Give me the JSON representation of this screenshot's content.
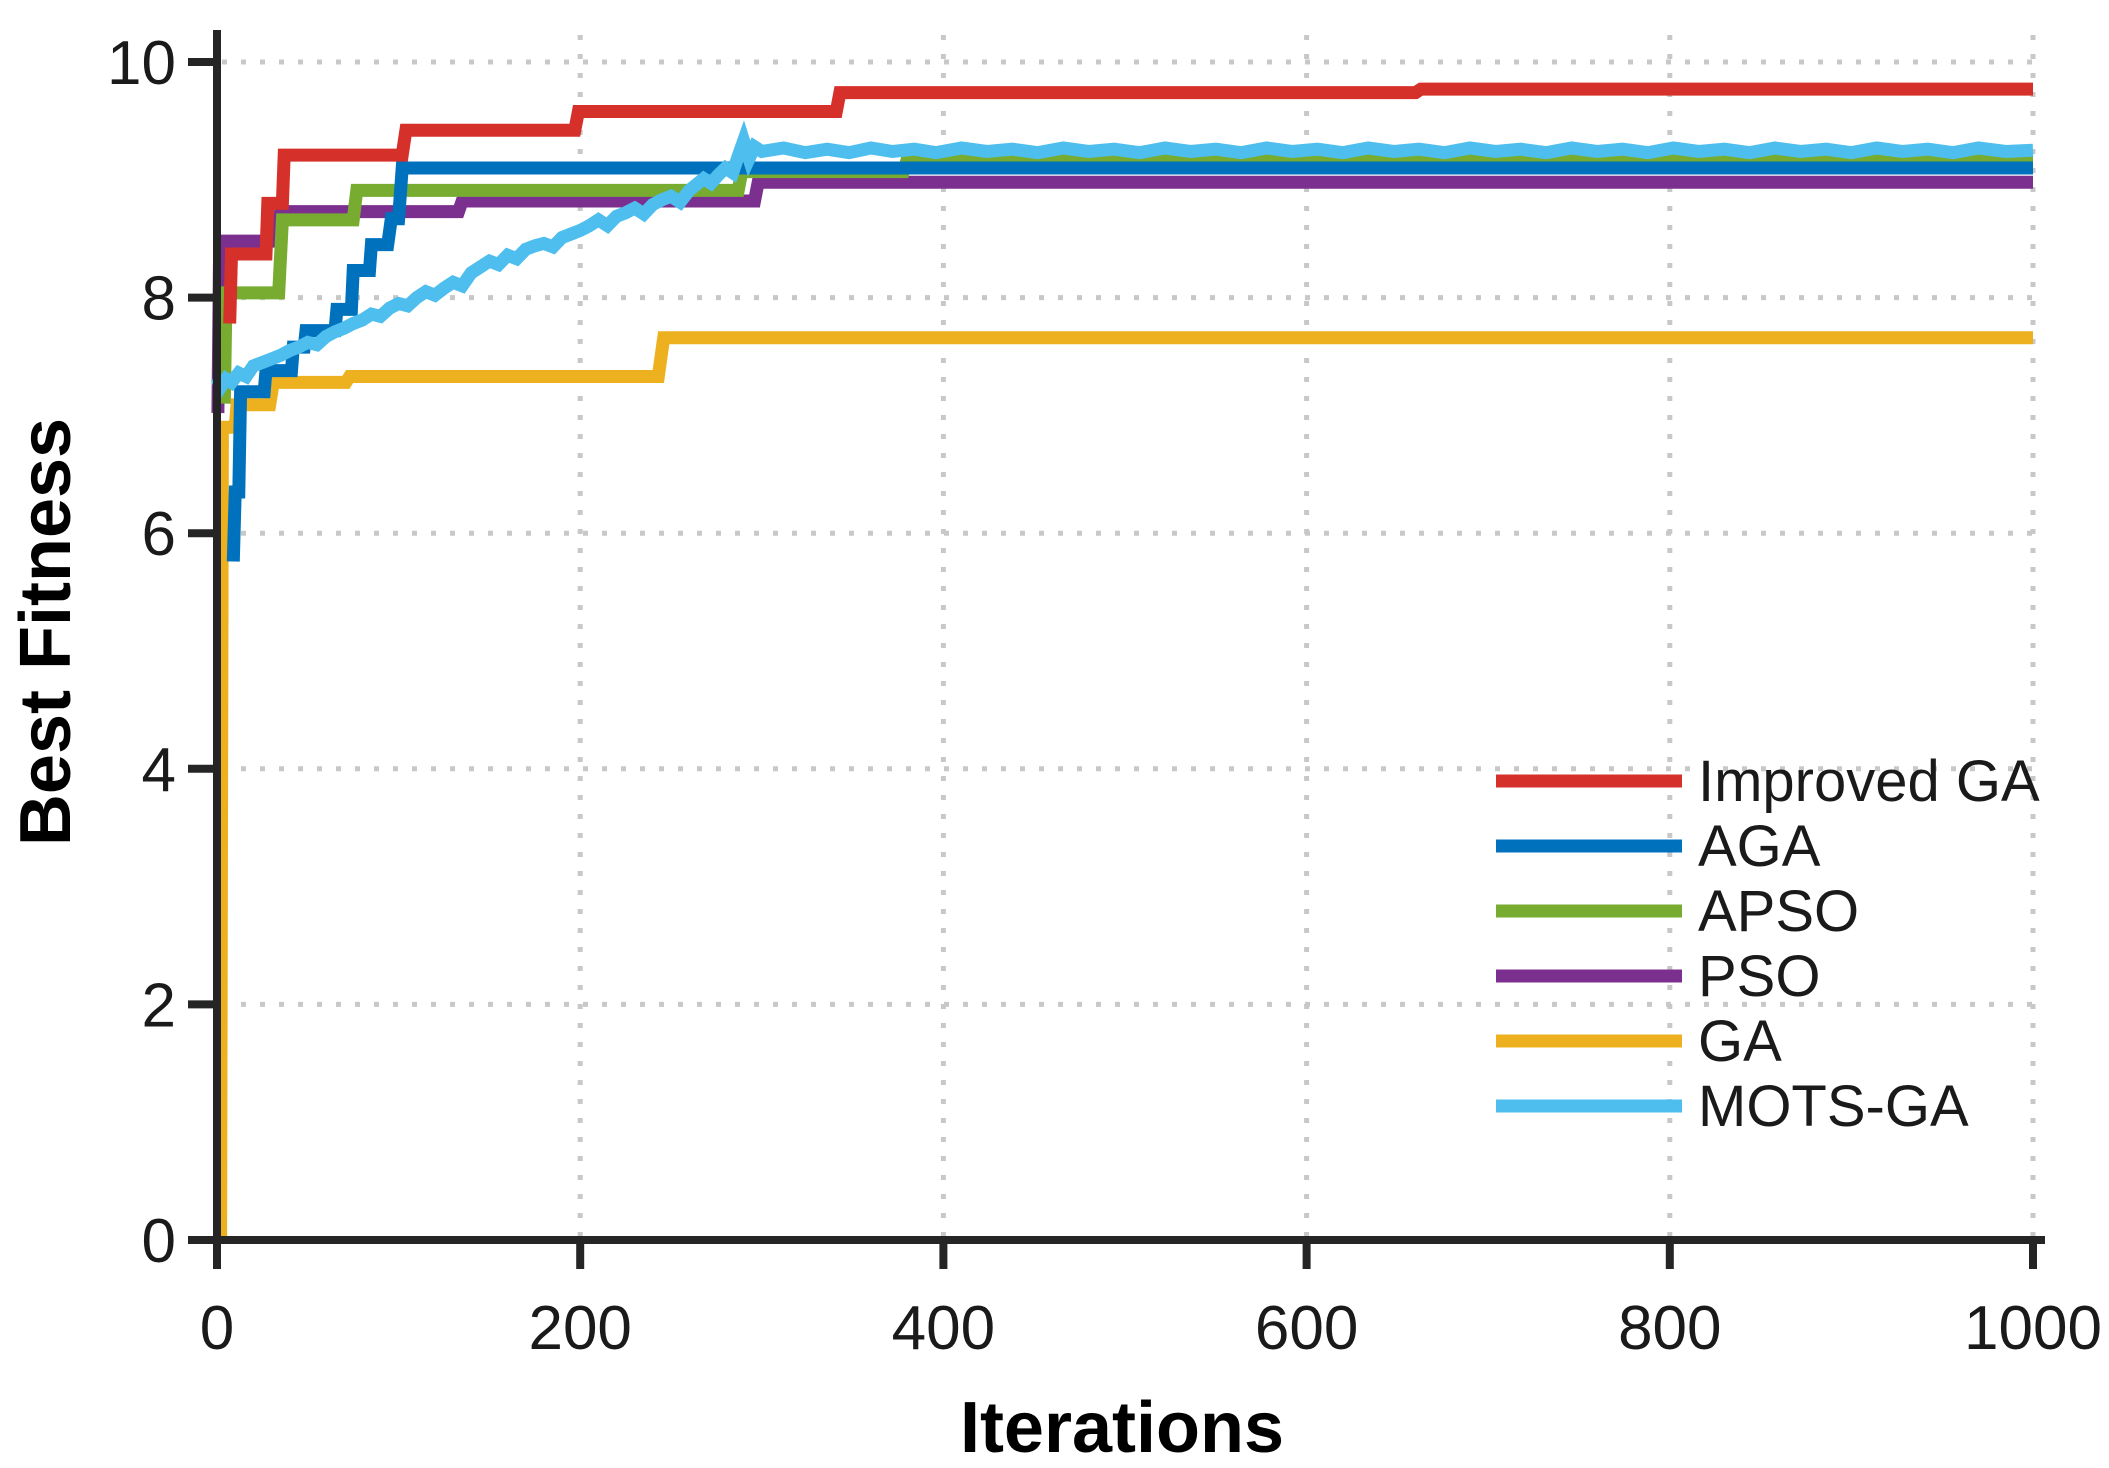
{
  "chart_data": {
    "type": "line",
    "title": "",
    "xlabel": "Iterations",
    "ylabel": "Best Fitness",
    "xlim": [
      0,
      1000
    ],
    "ylim": [
      0,
      10
    ],
    "xticks": [
      0,
      200,
      400,
      600,
      800,
      1000
    ],
    "yticks": [
      0,
      2,
      4,
      6,
      8,
      10
    ],
    "grid": {
      "show": true,
      "style": "dotted",
      "color": "#c8c8c8",
      "x_values": [
        200,
        400,
        600,
        800,
        1000
      ],
      "y_values": [
        2,
        4,
        6,
        8,
        10
      ]
    },
    "axis_color": "#252525",
    "text_color": "#1a1a1a",
    "legend": {
      "position": "inside-middle-right",
      "frame": false
    },
    "series": [
      {
        "name": "Improved GA",
        "color": "#d6302b",
        "z": 5,
        "points": [
          [
            7,
            7.78
          ],
          [
            8,
            8.37
          ],
          [
            27,
            8.37
          ],
          [
            28,
            8.8
          ],
          [
            36,
            8.8
          ],
          [
            37,
            9.21
          ],
          [
            102,
            9.21
          ],
          [
            104,
            9.42
          ],
          [
            197,
            9.42
          ],
          [
            199,
            9.58
          ],
          [
            341,
            9.58
          ],
          [
            343,
            9.74
          ],
          [
            660,
            9.74
          ],
          [
            663,
            9.77
          ],
          [
            1000,
            9.77
          ]
        ]
      },
      {
        "name": "AGA",
        "color": "#0072bd",
        "z": 4,
        "points": [
          [
            9,
            5.76
          ],
          [
            10,
            6.35
          ],
          [
            12,
            6.35
          ],
          [
            13,
            7.2
          ],
          [
            26,
            7.2
          ],
          [
            27,
            7.38
          ],
          [
            41,
            7.38
          ],
          [
            42,
            7.58
          ],
          [
            48,
            7.58
          ],
          [
            49,
            7.72
          ],
          [
            65,
            7.72
          ],
          [
            66,
            7.9
          ],
          [
            74,
            7.9
          ],
          [
            75,
            8.23
          ],
          [
            84,
            8.23
          ],
          [
            85,
            8.45
          ],
          [
            94,
            8.45
          ],
          [
            96,
            8.67
          ],
          [
            100,
            8.67
          ],
          [
            102,
            9.1
          ],
          [
            1000,
            9.1
          ]
        ]
      },
      {
        "name": "APSO",
        "color": "#77ac30",
        "z": 3,
        "points": [
          [
            4,
            7.1
          ],
          [
            5,
            8.04
          ],
          [
            34,
            8.04
          ],
          [
            36,
            8.66
          ],
          [
            75,
            8.66
          ],
          [
            77,
            8.91
          ],
          [
            287,
            8.91
          ],
          [
            289,
            9.07
          ],
          [
            378,
            9.07
          ],
          [
            380,
            9.17
          ],
          [
            1000,
            9.17
          ]
        ]
      },
      {
        "name": "PSO",
        "color": "#7b2f8e",
        "z": 2,
        "points": [
          [
            0.5,
            7.02
          ],
          [
            1.5,
            8.48
          ],
          [
            33,
            8.48
          ],
          [
            35,
            8.73
          ],
          [
            133,
            8.73
          ],
          [
            135,
            8.82
          ],
          [
            296,
            8.82
          ],
          [
            298,
            8.98
          ],
          [
            1000,
            8.98
          ]
        ]
      },
      {
        "name": "GA",
        "color": "#edb120",
        "z": 1,
        "points": [
          [
            2,
            0
          ],
          [
            3,
            6.9
          ],
          [
            10,
            6.9
          ],
          [
            11,
            7.09
          ],
          [
            29,
            7.09
          ],
          [
            31,
            7.28
          ],
          [
            71,
            7.28
          ],
          [
            73,
            7.33
          ],
          [
            243,
            7.33
          ],
          [
            246,
            7.66
          ],
          [
            1000,
            7.66
          ]
        ]
      },
      {
        "name": "MOTS-GA",
        "color": "#4dbeee",
        "z": 6,
        "points": [
          [
            0,
            7.32
          ],
          [
            2,
            7.24
          ],
          [
            5,
            7.31
          ],
          [
            8,
            7.28
          ],
          [
            12,
            7.36
          ],
          [
            16,
            7.33
          ],
          [
            20,
            7.42
          ],
          [
            25,
            7.45
          ],
          [
            30,
            7.48
          ],
          [
            35,
            7.51
          ],
          [
            40,
            7.55
          ],
          [
            45,
            7.58
          ],
          [
            50,
            7.62
          ],
          [
            55,
            7.6
          ],
          [
            60,
            7.67
          ],
          [
            65,
            7.71
          ],
          [
            70,
            7.74
          ],
          [
            75,
            7.78
          ],
          [
            80,
            7.81
          ],
          [
            85,
            7.86
          ],
          [
            90,
            7.84
          ],
          [
            95,
            7.91
          ],
          [
            100,
            7.95
          ],
          [
            105,
            7.93
          ],
          [
            110,
            8.0
          ],
          [
            115,
            8.05
          ],
          [
            120,
            8.02
          ],
          [
            125,
            8.08
          ],
          [
            130,
            8.13
          ],
          [
            135,
            8.1
          ],
          [
            140,
            8.21
          ],
          [
            145,
            8.26
          ],
          [
            150,
            8.31
          ],
          [
            155,
            8.28
          ],
          [
            160,
            8.36
          ],
          [
            165,
            8.33
          ],
          [
            170,
            8.41
          ],
          [
            175,
            8.44
          ],
          [
            180,
            8.46
          ],
          [
            185,
            8.43
          ],
          [
            190,
            8.51
          ],
          [
            195,
            8.54
          ],
          [
            200,
            8.57
          ],
          [
            205,
            8.61
          ],
          [
            210,
            8.66
          ],
          [
            215,
            8.61
          ],
          [
            220,
            8.69
          ],
          [
            225,
            8.72
          ],
          [
            230,
            8.76
          ],
          [
            235,
            8.71
          ],
          [
            240,
            8.79
          ],
          [
            245,
            8.83
          ],
          [
            250,
            8.86
          ],
          [
            255,
            8.81
          ],
          [
            260,
            8.91
          ],
          [
            264,
            8.96
          ],
          [
            268,
            9.01
          ],
          [
            272,
            8.97
          ],
          [
            276,
            9.04
          ],
          [
            280,
            9.1
          ],
          [
            284,
            9.06
          ],
          [
            287,
            9.2
          ],
          [
            290,
            9.33
          ],
          [
            293,
            9.18
          ],
          [
            296,
            9.28
          ],
          [
            300,
            9.24
          ],
          [
            312,
            9.27
          ],
          [
            324,
            9.23
          ],
          [
            336,
            9.26
          ],
          [
            348,
            9.23
          ],
          [
            360,
            9.27
          ],
          [
            372,
            9.24
          ],
          [
            384,
            9.26
          ],
          [
            396,
            9.23
          ],
          [
            410,
            9.27
          ],
          [
            424,
            9.24
          ],
          [
            438,
            9.26
          ],
          [
            452,
            9.23
          ],
          [
            466,
            9.27
          ],
          [
            480,
            9.24
          ],
          [
            494,
            9.26
          ],
          [
            508,
            9.23
          ],
          [
            522,
            9.27
          ],
          [
            536,
            9.24
          ],
          [
            550,
            9.26
          ],
          [
            564,
            9.23
          ],
          [
            578,
            9.27
          ],
          [
            592,
            9.24
          ],
          [
            606,
            9.26
          ],
          [
            620,
            9.23
          ],
          [
            634,
            9.27
          ],
          [
            648,
            9.24
          ],
          [
            662,
            9.26
          ],
          [
            676,
            9.23
          ],
          [
            690,
            9.27
          ],
          [
            704,
            9.24
          ],
          [
            718,
            9.26
          ],
          [
            732,
            9.23
          ],
          [
            746,
            9.27
          ],
          [
            760,
            9.24
          ],
          [
            774,
            9.26
          ],
          [
            788,
            9.23
          ],
          [
            802,
            9.27
          ],
          [
            816,
            9.24
          ],
          [
            830,
            9.26
          ],
          [
            844,
            9.23
          ],
          [
            858,
            9.27
          ],
          [
            872,
            9.24
          ],
          [
            886,
            9.26
          ],
          [
            900,
            9.23
          ],
          [
            914,
            9.27
          ],
          [
            928,
            9.24
          ],
          [
            942,
            9.26
          ],
          [
            956,
            9.23
          ],
          [
            970,
            9.27
          ],
          [
            985,
            9.24
          ],
          [
            1000,
            9.25
          ]
        ]
      }
    ]
  }
}
